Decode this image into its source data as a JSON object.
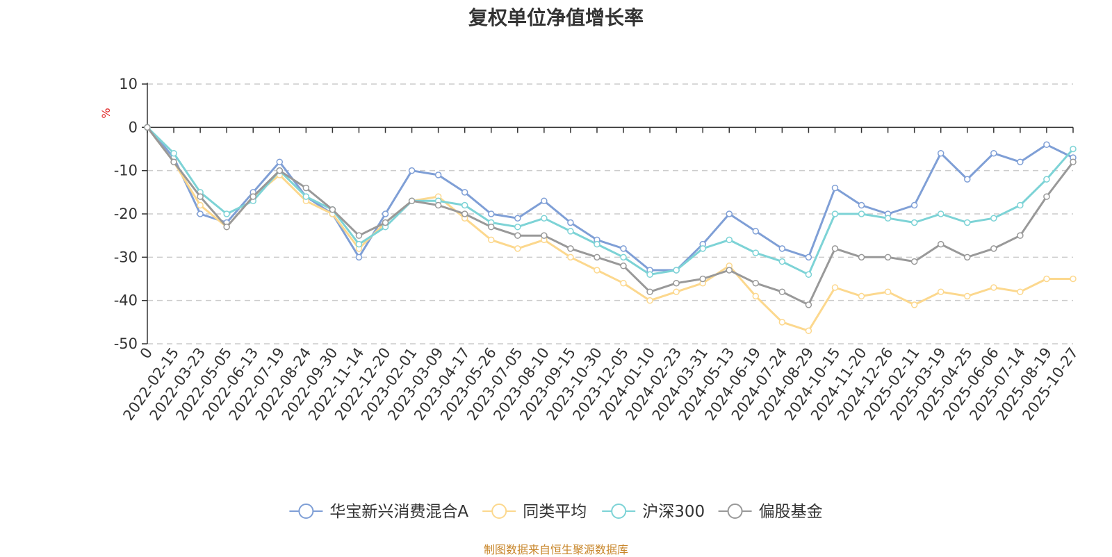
{
  "chart_data": {
    "type": "line",
    "title": "复权单位净值增长率",
    "ylabel": "%",
    "xlabel": "",
    "ylim": [
      -50,
      10
    ],
    "yticks": [
      "10",
      "0",
      "-10",
      "-20",
      "-30",
      "-40",
      "-50"
    ],
    "grid": true,
    "legend_position": "bottom-center",
    "categories": [
      "0",
      "2022-02-15",
      "2022-03-23",
      "2022-05-05",
      "2022-06-13",
      "2022-07-19",
      "2022-08-24",
      "2022-09-30",
      "2022-11-14",
      "2022-12-20",
      "2023-02-01",
      "2023-03-09",
      "2023-04-17",
      "2023-05-26",
      "2023-07-05",
      "2023-08-10",
      "2023-09-15",
      "2023-10-30",
      "2023-12-05",
      "2024-01-10",
      "2024-02-23",
      "2024-03-31",
      "2024-05-13",
      "2024-06-19",
      "2024-07-24",
      "2024-08-29",
      "2024-10-15",
      "2024-11-20",
      "2024-12-26",
      "2025-02-11",
      "2025-03-19",
      "2025-04-25",
      "2025-06-06",
      "2025-07-14",
      "2025-08-19",
      "2025-10-27"
    ],
    "series": [
      {
        "name": "华宝新兴消费混合A",
        "color": "#7f9fd6",
        "values": [
          0,
          -7,
          -20,
          -22,
          -15,
          -8,
          -16,
          -20,
          -30,
          -20,
          -10,
          -11,
          -15,
          -20,
          -21,
          -17,
          -22,
          -26,
          -28,
          -33,
          -33,
          -27,
          -20,
          -24,
          -28,
          -30,
          -14,
          -18,
          -20,
          -18,
          -6,
          -12,
          -6,
          -8,
          -4,
          -7
        ]
      },
      {
        "name": "同类平均",
        "color": "#fcd88e",
        "values": [
          0,
          -8,
          -18,
          -23,
          -16,
          -11,
          -17,
          -20,
          -28,
          -22,
          -17,
          -16,
          -21,
          -26,
          -28,
          -26,
          -30,
          -33,
          -36,
          -40,
          -38,
          -36,
          -32,
          -39,
          -45,
          -47,
          -37,
          -39,
          -38,
          -41,
          -38,
          -39,
          -37,
          -38,
          -35,
          -35
        ]
      },
      {
        "name": "沪深300",
        "color": "#7dd3d6",
        "values": [
          0,
          -6,
          -15,
          -20,
          -17,
          -10,
          -16,
          -19,
          -27,
          -23,
          -17,
          -17,
          -18,
          -22,
          -23,
          -21,
          -24,
          -27,
          -30,
          -34,
          -33,
          -28,
          -26,
          -29,
          -31,
          -34,
          -20,
          -20,
          -21,
          -22,
          -20,
          -22,
          -21,
          -18,
          -12,
          -5
        ]
      },
      {
        "name": "偏股基金",
        "color": "#999999",
        "values": [
          0,
          -8,
          -16,
          -23,
          -16,
          -10,
          -14,
          -19,
          -25,
          -22,
          -17,
          -18,
          -20,
          -23,
          -25,
          -25,
          -28,
          -30,
          -32,
          -38,
          -36,
          -35,
          -33,
          -36,
          -38,
          -41,
          -28,
          -30,
          -30,
          -31,
          -27,
          -30,
          -28,
          -25,
          -16,
          -8
        ]
      }
    ]
  },
  "footer": {
    "source": "制图数据来自恒生聚源数据库"
  }
}
